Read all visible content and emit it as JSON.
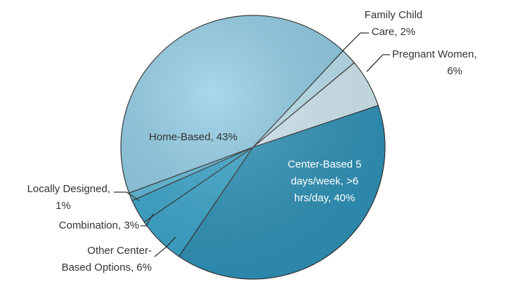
{
  "chart_data": {
    "type": "pie",
    "value_labels": [
      "Center-Based 5\ndays/week, >6\nhrs/day, 40%",
      "Other Center-\nBased Options, 6%",
      "Combination, 3%",
      "Locally Designed,\n1%",
      "Home-Based, 43%",
      "Family Child\nCare, 2%",
      "Pregnant Women,\n6%"
    ],
    "values": [
      40,
      6,
      3,
      1,
      43,
      2,
      6
    ],
    "colors": [
      "#2f93b9",
      "#3aa6cc",
      "#3aa6cc",
      "#5cb9d9",
      "#8ecbe4",
      "#b9e0ee",
      "#d2e9f2"
    ]
  }
}
